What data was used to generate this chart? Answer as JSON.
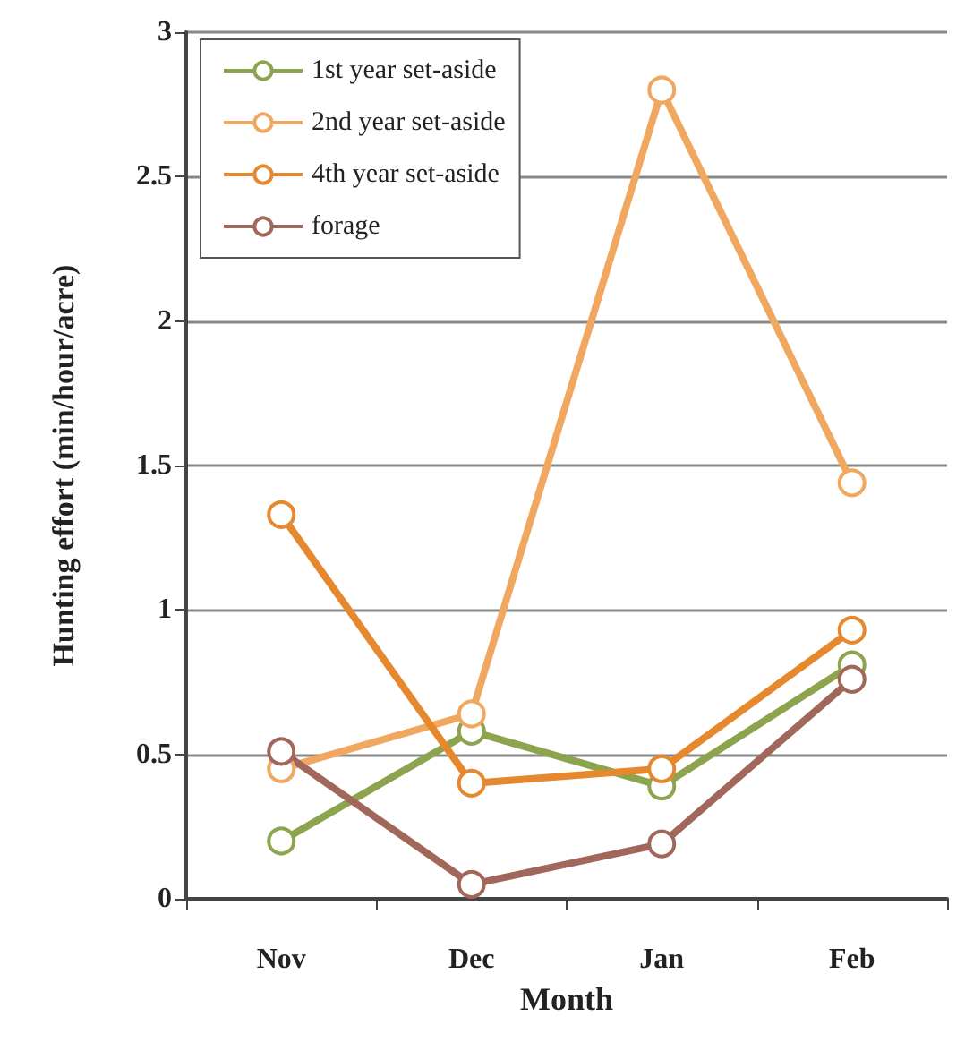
{
  "chart_data": {
    "type": "line",
    "xlabel": "Month",
    "ylabel": "Hunting effort (min/hour/acre)",
    "categories": [
      "Nov",
      "Dec",
      "Jan",
      "Feb"
    ],
    "series": [
      {
        "name": "1st year set-aside",
        "color": "#8da44f",
        "values": [
          0.2,
          0.58,
          0.39,
          0.81
        ]
      },
      {
        "name": "2nd year set-aside",
        "color": "#f0a860",
        "values": [
          0.45,
          0.64,
          2.8,
          1.44
        ]
      },
      {
        "name": "4th year set-aside",
        "color": "#e5882e",
        "values": [
          1.33,
          0.4,
          0.45,
          0.93
        ]
      },
      {
        "name": "forage",
        "color": "#a0675a",
        "values": [
          0.51,
          0.05,
          0.19,
          0.76
        ]
      }
    ],
    "ylim": [
      0,
      3
    ],
    "yticks": [
      0,
      0.5,
      1,
      1.5,
      2,
      2.5,
      3
    ],
    "grid": "y",
    "legend": "top left",
    "marker": "circle",
    "line_style": "solid"
  }
}
